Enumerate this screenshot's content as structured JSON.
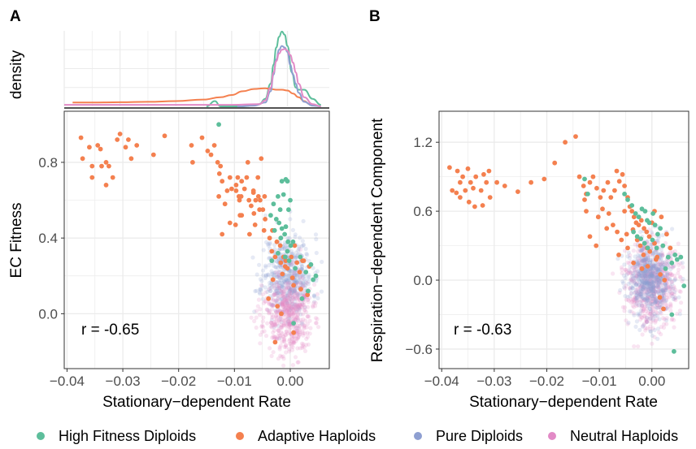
{
  "colors": {
    "high_fitness_diploids": "#5DBE9B",
    "adaptive_haploids": "#F4804F",
    "pure_diploids": "#8E9FD1",
    "neutral_haploids": "#E28AC6",
    "grid": "#EBEBEB",
    "frame": "#333333"
  },
  "legend": {
    "position": "bottom",
    "items": [
      {
        "key": "high_fitness_diploids",
        "label": "High Fitness Diploids"
      },
      {
        "key": "adaptive_haploids",
        "label": "Adaptive Haploids"
      },
      {
        "key": "pure_diploids",
        "label": "Pure Diploids"
      },
      {
        "key": "neutral_haploids",
        "label": "Neutral Haploids"
      }
    ]
  },
  "chart_data": [
    {
      "panel": "A",
      "type": "density",
      "ylabel": "density",
      "xlim": [
        -0.04,
        0.0075
      ],
      "ylim": [
        0,
        1
      ],
      "series": [
        {
          "key": "high_fitness_diploids",
          "x": [
            -0.0145,
            -0.013,
            -0.012,
            -0.011,
            -0.008,
            -0.005,
            -0.004,
            -0.003,
            -0.0025,
            -0.002,
            -0.0015,
            -0.001,
            -0.0005,
            0.0,
            0.0008,
            0.0015,
            0.002,
            0.003,
            0.0045,
            0.006
          ],
          "y": [
            0.0,
            0.07,
            0.0,
            0.0,
            0.0,
            0.03,
            0.1,
            0.3,
            0.55,
            0.78,
            0.92,
            0.99,
            0.95,
            0.8,
            0.45,
            0.25,
            0.22,
            0.22,
            0.1,
            0.02
          ]
        },
        {
          "key": "adaptive_haploids",
          "x": [
            -0.0385,
            -0.035,
            -0.03,
            -0.025,
            -0.02,
            -0.015,
            -0.012,
            -0.01,
            -0.008,
            -0.006,
            -0.004,
            -0.003,
            -0.002,
            -0.001,
            0.0,
            0.001,
            0.002,
            0.003,
            0.004,
            0.005
          ],
          "y": [
            0.05,
            0.05,
            0.055,
            0.06,
            0.07,
            0.09,
            0.12,
            0.15,
            0.2,
            0.23,
            0.24,
            0.23,
            0.22,
            0.22,
            0.21,
            0.17,
            0.12,
            0.07,
            0.03,
            0.01
          ]
        },
        {
          "key": "pure_diploids",
          "x": [
            -0.009,
            -0.006,
            -0.004,
            -0.003,
            -0.0025,
            -0.002,
            -0.0015,
            -0.001,
            -0.0005,
            0.0,
            0.0005,
            0.001,
            0.0015,
            0.002,
            0.003,
            0.0045,
            0.006
          ],
          "y": [
            0.0,
            0.01,
            0.05,
            0.2,
            0.42,
            0.62,
            0.75,
            0.8,
            0.78,
            0.72,
            0.55,
            0.42,
            0.3,
            0.18,
            0.06,
            0.01,
            0.0
          ]
        },
        {
          "key": "neutral_haploids",
          "x": [
            -0.04,
            -0.02,
            -0.01,
            -0.005,
            -0.004,
            -0.003,
            -0.0025,
            -0.002,
            -0.0015,
            -0.001,
            -0.0005,
            0.0,
            0.0005,
            0.001,
            0.0015,
            0.002,
            0.003,
            0.0045,
            0.006
          ],
          "y": [
            0.02,
            0.02,
            0.02,
            0.03,
            0.08,
            0.25,
            0.45,
            0.6,
            0.7,
            0.75,
            0.76,
            0.74,
            0.68,
            0.58,
            0.45,
            0.3,
            0.12,
            0.03,
            0.0
          ]
        }
      ]
    },
    {
      "panel": "A",
      "type": "scatter",
      "xlabel": "Stationary−dependent Rate",
      "ylabel": "EC Fitness",
      "xlim": [
        -0.0405,
        0.007
      ],
      "ylim": [
        -0.29,
        1.07
      ],
      "xticks": [
        -0.04,
        -0.03,
        -0.02,
        -0.01,
        0.0
      ],
      "xtick_labels": [
        "−0.04",
        "−0.03",
        "−0.02",
        "−0.01",
        "0.00"
      ],
      "yticks": [
        0.0,
        0.4,
        0.8
      ],
      "ytick_labels": [
        "0.0",
        "0.4",
        "0.8"
      ],
      "annotation": "r = -0.65",
      "clouds": [
        {
          "key": "pure_diploids",
          "cx": -0.0005,
          "cy": 0.2,
          "sx": 0.0022,
          "sy": 0.11,
          "n": 520,
          "seed": 11
        },
        {
          "key": "neutral_haploids",
          "cx": -0.0005,
          "cy": -0.01,
          "sx": 0.0022,
          "sy": 0.11,
          "n": 520,
          "seed": 23
        }
      ],
      "series": [
        {
          "key": "adaptive_haploids",
          "x": [
            -0.0375,
            -0.0372,
            -0.036,
            -0.0355,
            -0.0345,
            -0.034,
            -0.033,
            -0.0325,
            -0.031,
            -0.0305,
            -0.0295,
            -0.029,
            -0.0285,
            -0.0275,
            -0.0245,
            -0.0225,
            -0.0355,
            -0.0338,
            -0.0318,
            -0.033,
            -0.0177,
            -0.0158,
            -0.0148,
            -0.0142,
            -0.0136,
            -0.013,
            -0.0127,
            -0.0125,
            -0.0122,
            -0.0175,
            -0.0128,
            -0.0113,
            -0.0108,
            -0.0097,
            -0.0091,
            -0.0087,
            -0.0082,
            -0.0078,
            -0.0074,
            -0.007,
            -0.0066,
            -0.0062,
            -0.0058,
            -0.0054,
            -0.0049,
            -0.0046,
            -0.0076,
            -0.0094,
            -0.0105,
            -0.0117,
            -0.0088,
            -0.0066,
            -0.0052,
            -0.0097,
            -0.0055,
            -0.0045,
            -0.0032,
            -0.0024,
            -0.0018,
            -0.0012,
            -0.0008,
            0.0002,
            0.0012,
            0.0024,
            0.0034,
            -0.009,
            -0.0122,
            -0.0108,
            -0.0087,
            -0.0098,
            -0.0063,
            -0.0047,
            -0.0037,
            -0.0027,
            -0.0017,
            -0.0005,
            0.0004,
            0.0017,
            -0.0092,
            -0.0065,
            -0.0031,
            -0.0073,
            -0.0039,
            -0.0023,
            -0.0014,
            -0.0057,
            -0.0033,
            -0.0009,
            0.0006,
            0.0019,
            0.0031,
            -0.0016,
            0.0008,
            0.0022,
            -0.0027,
            0.0006
          ],
          "y": [
            0.93,
            0.82,
            0.88,
            0.78,
            0.89,
            0.87,
            0.8,
            0.78,
            0.92,
            0.95,
            0.88,
            0.92,
            0.82,
            0.89,
            0.84,
            0.94,
            0.72,
            0.78,
            0.72,
            0.68,
            0.89,
            0.93,
            0.86,
            0.84,
            0.89,
            0.8,
            0.74,
            0.78,
            0.7,
            0.8,
            0.62,
            0.65,
            0.72,
            0.65,
            0.6,
            0.7,
            0.66,
            0.72,
            0.6,
            0.57,
            0.64,
            0.6,
            0.72,
            0.6,
            0.55,
            0.62,
            0.8,
            0.72,
            0.66,
            0.58,
            0.62,
            0.65,
            0.82,
            0.68,
            0.55,
            0.5,
            0.44,
            0.38,
            0.36,
            0.3,
            0.28,
            0.3,
            0.27,
            0.28,
            0.25,
            0.52,
            0.42,
            0.48,
            0.52,
            0.47,
            0.47,
            0.44,
            0.4,
            0.3,
            0.27,
            0.24,
            0.19,
            0.22,
            0.62,
            0.53,
            0.18,
            0.42,
            0.08,
            0.04,
            0.21,
            0.62,
            0.33,
            0.25,
            0.15,
            0.13,
            0.1,
            0.0,
            0.36,
            0.28,
            -0.15,
            -0.1
          ]
        },
        {
          "key": "high_fitness_diploids",
          "x": [
            -0.0128,
            -0.0022,
            -0.0015,
            -0.0008,
            -0.0012,
            -0.0005,
            0.0,
            -0.003,
            -0.0035,
            -0.0018,
            -0.0025,
            -0.002,
            -0.0015,
            -0.0008,
            -0.0003,
            -0.0028,
            -0.0017,
            -0.001,
            -0.0004,
            -0.0033,
            -0.0022,
            -0.0005,
            0.0001,
            -0.0009,
            -0.0002,
            0.0009,
            0.0005,
            0.0018,
            0.0028,
            0.0037,
            0.0021,
            0.0006,
            0.0041,
            0.0032,
            0.0046
          ],
          "y": [
            1.0,
            0.62,
            0.7,
            0.71,
            0.63,
            0.7,
            0.6,
            0.58,
            0.52,
            0.55,
            0.5,
            0.48,
            0.45,
            0.46,
            0.55,
            0.44,
            0.4,
            0.42,
            0.38,
            0.28,
            0.32,
            0.33,
            0.36,
            0.3,
            0.28,
            0.24,
            0.38,
            0.3,
            0.22,
            0.26,
            0.08,
            -0.05,
            0.18,
            0.12,
            0.2
          ]
        }
      ]
    },
    {
      "panel": "B",
      "type": "scatter",
      "xlabel": "Stationary−dependent Rate",
      "ylabel": "Respiration−dependent Component",
      "xlim": [
        -0.0405,
        0.007
      ],
      "ylim": [
        -0.77,
        1.47
      ],
      "xticks": [
        -0.04,
        -0.03,
        -0.02,
        -0.01,
        0.0
      ],
      "xtick_labels": [
        "−0.04",
        "−0.03",
        "−0.02",
        "−0.01",
        "0.00"
      ],
      "yticks": [
        -0.6,
        0.0,
        0.6,
        1.2
      ],
      "ytick_labels": [
        "−0.6",
        "0.0",
        "0.6",
        "1.2"
      ],
      "annotation": "r = -0.63",
      "clouds": [
        {
          "key": "neutral_haploids",
          "cx": 0.0,
          "cy": -0.02,
          "sx": 0.0024,
          "sy": 0.19,
          "n": 560,
          "seed": 37
        },
        {
          "key": "pure_diploids",
          "cx": -0.0002,
          "cy": 0.0,
          "sx": 0.0022,
          "sy": 0.17,
          "n": 560,
          "seed": 53
        }
      ],
      "series": [
        {
          "key": "adaptive_haploids",
          "x": [
            -0.0385,
            -0.038,
            -0.037,
            -0.0365,
            -0.036,
            -0.0355,
            -0.035,
            -0.0345,
            -0.034,
            -0.0335,
            -0.0325,
            -0.032,
            -0.0315,
            -0.031,
            -0.0308,
            -0.0295,
            -0.028,
            -0.0255,
            -0.023,
            -0.0365,
            -0.0348,
            -0.0322,
            -0.0372,
            -0.0337,
            -0.0205,
            -0.0185,
            -0.0165,
            -0.0145,
            -0.0138,
            -0.013,
            -0.0125,
            -0.0118,
            -0.0112,
            -0.0105,
            -0.0098,
            -0.0092,
            -0.0084,
            -0.0078,
            -0.0071,
            -0.0067,
            -0.0062,
            -0.0056,
            -0.0052,
            -0.0046,
            -0.0042,
            -0.0038,
            -0.0034,
            -0.003,
            -0.0025,
            -0.002,
            -0.0015,
            -0.001,
            -0.0005,
            0.0,
            -0.0128,
            -0.0125,
            -0.0102,
            -0.0094,
            -0.0082,
            -0.0074,
            -0.0066,
            -0.0058,
            -0.0048,
            -0.0036,
            -0.0028,
            -0.0022,
            -0.0016,
            -0.0009,
            -0.0004,
            -0.0118,
            -0.0086,
            -0.0052,
            -0.0046,
            -0.0063,
            -0.0035,
            -0.0019,
            0.0005,
            0.001,
            0.0016,
            0.0024,
            0.0015,
            0.0022,
            0.0008,
            0.0028,
            0.0035,
            -0.0008,
            0.0018,
            0.0005,
            -0.0106
          ],
          "y": [
            0.98,
            0.78,
            0.95,
            0.85,
            0.9,
            0.78,
            0.97,
            0.85,
            0.8,
            0.9,
            0.78,
            0.92,
            0.85,
            0.95,
            0.72,
            0.85,
            0.82,
            0.77,
            0.85,
            0.72,
            0.68,
            0.65,
            0.76,
            0.64,
            0.88,
            1.02,
            1.2,
            1.25,
            0.9,
            0.82,
            0.75,
            0.85,
            0.9,
            0.8,
            0.72,
            0.78,
            0.85,
            0.72,
            0.78,
            0.95,
            0.86,
            0.92,
            0.82,
            0.72,
            0.64,
            0.6,
            0.55,
            0.5,
            0.48,
            0.52,
            0.45,
            0.42,
            0.38,
            0.5,
            0.7,
            0.6,
            0.55,
            0.62,
            0.58,
            0.48,
            0.42,
            0.35,
            0.4,
            0.44,
            0.35,
            0.3,
            0.22,
            0.28,
            0.25,
            0.38,
            0.45,
            0.6,
            0.28,
            0.22,
            0.15,
            0.1,
            0.32,
            0.2,
            0.05,
            0.0,
            -0.15,
            -0.25,
            0.18,
            0.4,
            0.28,
            0.12,
            0.55,
            0.6,
            0.3
          ]
        },
        {
          "key": "high_fitness_diploids",
          "x": [
            -0.0128,
            -0.0122,
            -0.0052,
            -0.0046,
            -0.0038,
            -0.0031,
            -0.0025,
            -0.0019,
            -0.0013,
            -0.0009,
            -0.0005,
            0.0002,
            0.0006,
            0.0011,
            0.0016,
            -0.0035,
            -0.0028,
            -0.0021,
            -0.0014,
            -0.0008,
            0.0001,
            0.0009,
            0.0021,
            0.0031,
            0.0044,
            0.0055,
            0.0038,
            0.0026,
            0.0048,
            0.0061,
            0.0038,
            0.0042
          ],
          "y": [
            0.88,
            0.75,
            0.75,
            0.7,
            0.65,
            0.58,
            0.55,
            0.62,
            0.6,
            0.52,
            0.5,
            0.58,
            0.48,
            0.4,
            0.45,
            0.42,
            0.38,
            0.36,
            0.32,
            0.28,
            0.35,
            0.28,
            0.3,
            0.2,
            0.22,
            0.2,
            0.15,
            0.1,
            0.18,
            -0.05,
            -0.3,
            -0.62
          ]
        }
      ]
    }
  ]
}
